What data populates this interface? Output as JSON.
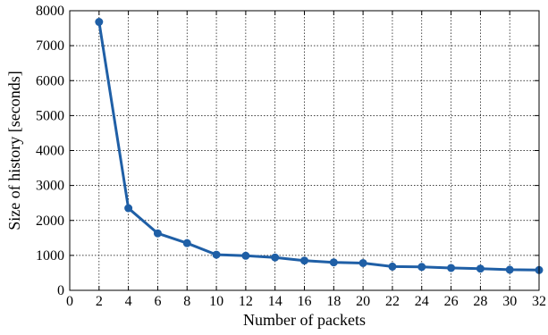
{
  "chart_data": {
    "type": "line",
    "xlabel": "Number of packets",
    "ylabel": "Size of history [seconds]",
    "xlim": [
      0,
      32
    ],
    "ylim": [
      0,
      8000
    ],
    "xticks": [
      0,
      2,
      4,
      6,
      8,
      10,
      12,
      14,
      16,
      18,
      20,
      22,
      24,
      26,
      28,
      30,
      32
    ],
    "yticks": [
      0,
      1000,
      2000,
      3000,
      4000,
      5000,
      6000,
      7000,
      8000
    ],
    "grid": true,
    "series": [
      {
        "color": "#1f5fa6",
        "marker": "circle",
        "x": [
          2,
          4,
          6,
          8,
          10,
          12,
          14,
          16,
          18,
          20,
          22,
          24,
          26,
          28,
          30,
          32
        ],
        "y": [
          7680,
          2350,
          1630,
          1350,
          1020,
          990,
          940,
          850,
          800,
          780,
          680,
          670,
          640,
          620,
          590,
          580
        ]
      }
    ]
  }
}
